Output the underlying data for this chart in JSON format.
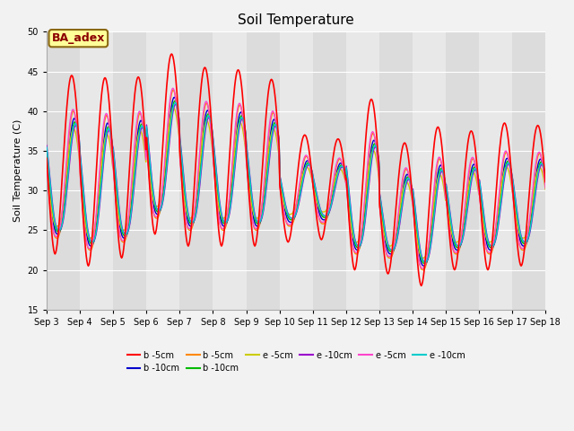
{
  "title": "Soil Temperature",
  "ylabel": "Soil Temperature (C)",
  "ylim": [
    15,
    50
  ],
  "yticks": [
    15,
    20,
    25,
    30,
    35,
    40,
    45,
    50
  ],
  "figsize": [
    6.4,
    4.8
  ],
  "dpi": 100,
  "background_color": "#f2f2f2",
  "plot_bg_color": "#e8e8e8",
  "annotation_text": "BA_adex",
  "annotation_color": "#8b0000",
  "annotation_bg": "#ffff99",
  "annotation_border": "#8b6914",
  "series": [
    {
      "label": "b -5cm",
      "color": "#ff0000",
      "lw": 1.2,
      "zorder": 5
    },
    {
      "label": "b -10cm",
      "color": "#0000cc",
      "lw": 1.0,
      "zorder": 4
    },
    {
      "label": "b -5cm",
      "color": "#ff8800",
      "lw": 1.0,
      "zorder": 4
    },
    {
      "label": "b -10cm",
      "color": "#00bb00",
      "lw": 1.0,
      "zorder": 4
    },
    {
      "label": "e -5cm",
      "color": "#cccc00",
      "lw": 1.0,
      "zorder": 4
    },
    {
      "label": "e -10cm",
      "color": "#9900cc",
      "lw": 1.0,
      "zorder": 4
    },
    {
      "label": "e -5cm",
      "color": "#ff44cc",
      "lw": 1.0,
      "zorder": 4
    },
    {
      "label": "e -10cm",
      "color": "#00cccc",
      "lw": 1.0,
      "zorder": 4
    }
  ],
  "xtick_labels": [
    "Sep 3",
    "Sep 4",
    "Sep 5",
    "Sep 6",
    "Sep 7",
    "Sep 8",
    "Sep 9",
    "Sep 10",
    "Sep 11",
    "Sep 12",
    "Sep 13",
    "Sep 14",
    "Sep 15",
    "Sep 16",
    "Sep 17",
    "Sep 18"
  ],
  "red_peaks": [
    44.5,
    44.2,
    44.3,
    47.2,
    45.5,
    45.2,
    44.0,
    37.0,
    36.5,
    41.5,
    36.0,
    38.0,
    37.5,
    38.5,
    38.2
  ],
  "red_mins": [
    22.0,
    20.5,
    21.5,
    24.5,
    23.0,
    23.0,
    23.0,
    23.5,
    23.8,
    20.0,
    19.5,
    18.0,
    20.0,
    20.0,
    20.5
  ],
  "other_peak_fracs": [
    0.76,
    0.8,
    0.74,
    0.7,
    0.72,
    0.81,
    0.73
  ],
  "other_min_offsets": [
    2.5,
    2.0,
    2.8,
    3.5,
    3.0,
    2.2,
    3.0
  ],
  "other_lags": [
    0.08,
    0.05,
    0.1,
    0.06,
    0.12,
    0.04,
    0.11
  ]
}
